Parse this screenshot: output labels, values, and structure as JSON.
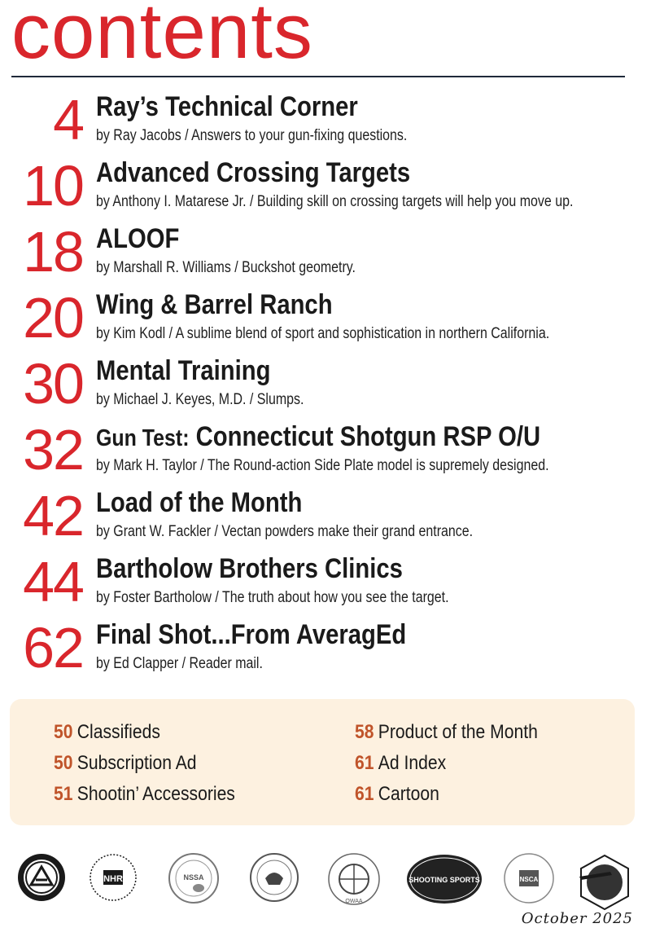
{
  "page_title": "contents",
  "entries": [
    {
      "page": "4",
      "title": "Ray’s Technical Corner",
      "desc": "by Ray Jacobs / Answers to your gun-fixing questions."
    },
    {
      "page": "10",
      "title": "Advanced Crossing Targets",
      "desc": "by Anthony I. Matarese Jr. / Building skill on crossing targets will help you move up."
    },
    {
      "page": "18",
      "title": "ALOOF",
      "desc": "by Marshall R. Williams / Buckshot geometry."
    },
    {
      "page": "20",
      "title": "Wing & Barrel Ranch",
      "desc": "by Kim Kodl / A sublime blend of sport and sophistication in northern California."
    },
    {
      "page": "30",
      "title": "Mental Training",
      "desc": "by Michael J. Keyes, M.D. / Slumps."
    },
    {
      "page": "32",
      "prefix": "Gun Test:",
      "title": "Connecticut Shotgun RSP O/U",
      "desc": "by Mark H. Taylor / The Round-action Side Plate model is supremely designed."
    },
    {
      "page": "42",
      "title": "Load of the Month",
      "desc": "by Grant W. Fackler / Vectan powders make their grand entrance."
    },
    {
      "page": "44",
      "title": "Bartholow Brothers Clinics",
      "desc": "by Foster Bartholow / The truth about how you see the target."
    },
    {
      "page": "62",
      "title": "Final Shot...From AveragEd",
      "desc": "by Ed Clapper / Reader mail."
    }
  ],
  "departments": {
    "left": [
      {
        "page": "50",
        "label": "Classifieds"
      },
      {
        "page": "50",
        "label": "Subscription Ad"
      },
      {
        "page": "51",
        "label": "Shootin’ Accessories"
      }
    ],
    "right": [
      {
        "page": "58",
        "label": "Product of the Month"
      },
      {
        "page": "61",
        "label": "Ad Index"
      },
      {
        "page": "61",
        "label": "Cartoon"
      }
    ]
  },
  "logos": [
    {
      "text": "",
      "icon": "ata-seal-icon"
    },
    {
      "text": "NHR",
      "icon": "nhr-seal-icon"
    },
    {
      "text": "NSSA",
      "icon": "nssa-seal-icon"
    },
    {
      "text": "",
      "icon": "nra-seal-icon"
    },
    {
      "text": "OWAA",
      "icon": "owaa-seal-icon"
    },
    {
      "text": "SHOOTING SPORTS",
      "icon": "nssf-seal-icon"
    },
    {
      "text": "NSCA",
      "icon": "nsca-seal-icon"
    },
    {
      "text": "",
      "icon": "sssf-seal-icon"
    }
  ],
  "issue_date": "October 2025",
  "colors": {
    "accent": "#d9262c",
    "page_number_small": "#c0542a",
    "box_bg": "#fdf1e0",
    "rule": "#1f2a3a"
  }
}
